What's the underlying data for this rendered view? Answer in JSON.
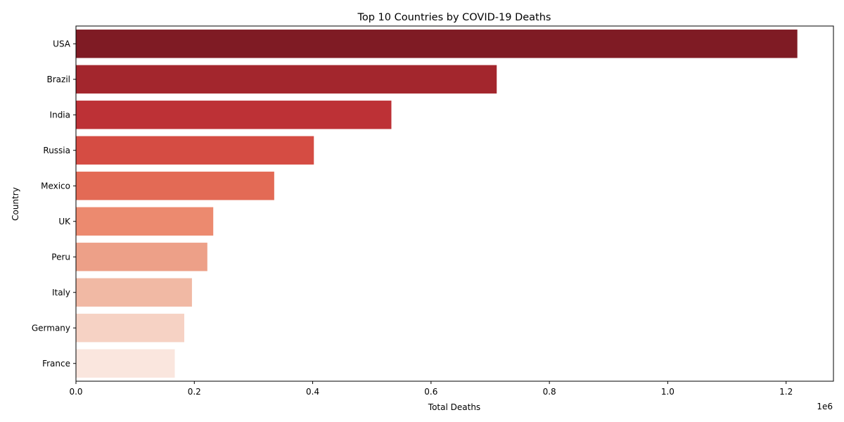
{
  "chart_data": {
    "type": "bar",
    "orientation": "horizontal",
    "title": "Top 10 Countries by COVID-19 Deaths",
    "xlabel": "Total Deaths",
    "ylabel": "Country",
    "x_offset_label": "1e6",
    "xlim": [
      0,
      1280000
    ],
    "x_ticks": [
      0,
      200000,
      400000,
      600000,
      800000,
      1000000,
      1200000
    ],
    "x_tick_labels": [
      "0.0",
      "0.2",
      "0.4",
      "0.6",
      "0.8",
      "1.0",
      "1.2"
    ],
    "grid": false,
    "categories": [
      "USA",
      "Brazil",
      "India",
      "Russia",
      "Mexico",
      "UK",
      "Peru",
      "Italy",
      "Germany",
      "France"
    ],
    "values": [
      1219000,
      711000,
      533000,
      402000,
      335000,
      232000,
      222000,
      196000,
      183000,
      167000
    ],
    "colors": [
      "#7f1b24",
      "#a3262d",
      "#bd3136",
      "#d54c43",
      "#e36a55",
      "#ec8a6f",
      "#eda088",
      "#f1b9a4",
      "#f6d2c4",
      "#fae6de"
    ]
  }
}
